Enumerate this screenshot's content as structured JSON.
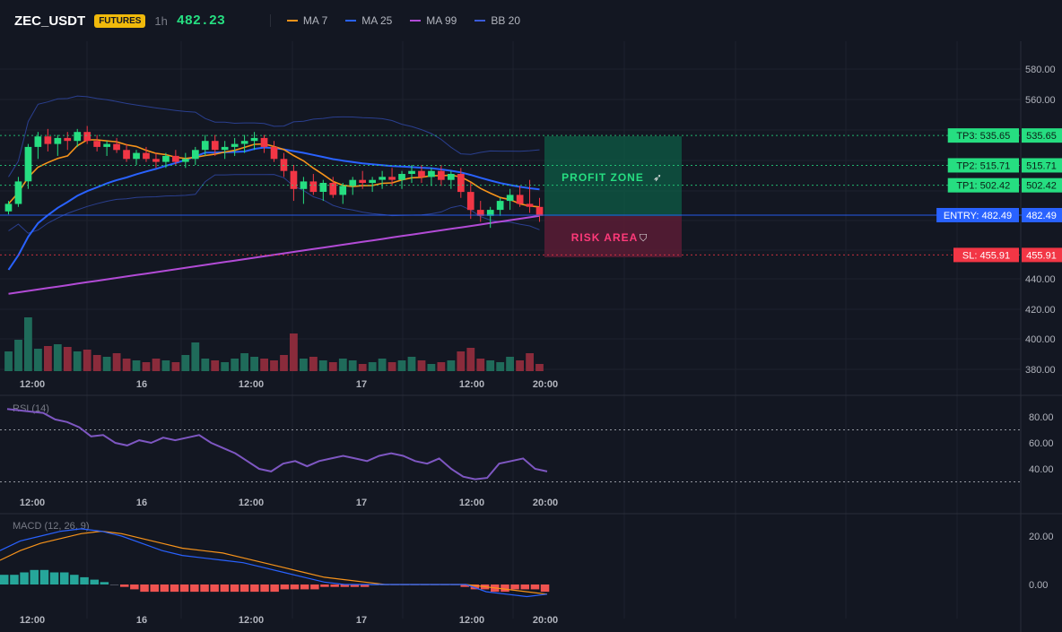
{
  "header": {
    "symbol": "ZEC_USDT",
    "badge": "FUTURES",
    "timeframe": "1h",
    "price": "482.23",
    "indicators": [
      {
        "label": "MA 7",
        "color": "#f7931a"
      },
      {
        "label": "MA 25",
        "color": "#2962ff"
      },
      {
        "label": "MA 99",
        "color": "#b24bd6"
      },
      {
        "label": "BB 20",
        "color": "#3a5bd9"
      }
    ]
  },
  "zones": {
    "profit": "PROFIT ZONE",
    "risk": "RISK AREA"
  },
  "levels": [
    {
      "label": "TP3: 535.65",
      "value": 535.65,
      "axis": "535.65",
      "color": "#26de81"
    },
    {
      "label": "TP2: 515.71",
      "value": 515.71,
      "axis": "515.71",
      "color": "#26de81"
    },
    {
      "label": "TP1: 502.42",
      "value": 502.42,
      "axis": "502.42",
      "color": "#26de81"
    },
    {
      "label": "ENTRY: 482.49",
      "value": 482.49,
      "axis": "482.49",
      "color": "#2962ff"
    },
    {
      "label": "SL: 455.91",
      "value": 455.91,
      "axis": "455.91",
      "color": "#f23645"
    }
  ],
  "rsi_title": "RSI (14)",
  "macd_title": "MACD (12, 26, 9)",
  "chart_data": [
    {
      "type": "candlestick",
      "title": "",
      "yticks": [
        "580.00",
        "560.00",
        "440.00",
        "420.00",
        "400.00",
        "380.00"
      ],
      "xticks": [
        "12:00",
        "16",
        "12:00",
        "17",
        "12:00",
        "20:00"
      ],
      "ylim": [
        380,
        590
      ],
      "candles": [
        [
          485,
          492,
          483,
          490
        ],
        [
          490,
          508,
          488,
          505
        ],
        [
          505,
          530,
          500,
          528
        ],
        [
          528,
          538,
          520,
          535
        ],
        [
          535,
          540,
          525,
          530
        ],
        [
          530,
          536,
          522,
          534
        ],
        [
          534,
          538,
          526,
          532
        ],
        [
          532,
          540,
          528,
          538
        ],
        [
          538,
          542,
          530,
          532
        ],
        [
          532,
          536,
          525,
          528
        ],
        [
          528,
          532,
          522,
          530
        ],
        [
          530,
          534,
          524,
          526
        ],
        [
          526,
          530,
          518,
          520
        ],
        [
          520,
          526,
          516,
          524
        ],
        [
          524,
          528,
          518,
          520
        ],
        [
          520,
          524,
          514,
          518
        ],
        [
          518,
          524,
          514,
          522
        ],
        [
          522,
          526,
          516,
          518
        ],
        [
          518,
          524,
          514,
          520
        ],
        [
          520,
          528,
          516,
          526
        ],
        [
          526,
          536,
          522,
          532
        ],
        [
          532,
          536,
          522,
          526
        ],
        [
          526,
          532,
          520,
          528
        ],
        [
          528,
          534,
          522,
          530
        ],
        [
          530,
          536,
          524,
          532
        ],
        [
          532,
          538,
          526,
          534
        ],
        [
          534,
          536,
          524,
          528
        ],
        [
          528,
          532,
          518,
          520
        ],
        [
          520,
          524,
          508,
          512
        ],
        [
          512,
          516,
          492,
          500
        ],
        [
          500,
          508,
          490,
          505
        ],
        [
          505,
          510,
          496,
          498
        ],
        [
          498,
          506,
          492,
          504
        ],
        [
          504,
          508,
          494,
          496
        ],
        [
          496,
          504,
          490,
          502
        ],
        [
          502,
          508,
          496,
          506
        ],
        [
          506,
          512,
          500,
          504
        ],
        [
          504,
          508,
          498,
          506
        ],
        [
          506,
          512,
          500,
          508
        ],
        [
          508,
          514,
          502,
          506
        ],
        [
          506,
          512,
          500,
          510
        ],
        [
          510,
          516,
          504,
          512
        ],
        [
          512,
          516,
          504,
          508
        ],
        [
          508,
          514,
          502,
          512
        ],
        [
          512,
          516,
          502,
          506
        ],
        [
          506,
          512,
          500,
          510
        ],
        [
          510,
          514,
          494,
          498
        ],
        [
          498,
          504,
          480,
          486
        ],
        [
          486,
          492,
          478,
          482
        ],
        [
          482,
          488,
          474,
          486
        ],
        [
          486,
          494,
          482,
          492
        ],
        [
          492,
          500,
          486,
          496
        ],
        [
          496,
          502,
          488,
          490
        ],
        [
          490,
          506,
          484,
          488
        ],
        [
          488,
          494,
          478,
          482
        ]
      ],
      "volume": [
        22,
        35,
        60,
        25,
        28,
        30,
        27,
        22,
        24,
        18,
        16,
        20,
        14,
        12,
        10,
        14,
        12,
        10,
        18,
        32,
        14,
        12,
        10,
        14,
        20,
        16,
        14,
        12,
        18,
        42,
        14,
        16,
        12,
        10,
        14,
        12,
        8,
        10,
        14,
        10,
        12,
        16,
        12,
        8,
        10,
        12,
        22,
        26,
        14,
        12,
        10,
        16,
        12,
        20,
        8
      ]
    },
    {
      "type": "line",
      "title": "RSI (14)",
      "yticks": [
        "80.00",
        "60.00",
        "40.00"
      ],
      "ylim": [
        25,
        90
      ],
      "values": [
        86,
        85,
        84,
        83,
        78,
        76,
        72,
        65,
        66,
        60,
        58,
        62,
        60,
        64,
        62,
        64,
        66,
        60,
        56,
        52,
        46,
        40,
        38,
        44,
        46,
        42,
        46,
        48,
        50,
        48,
        46,
        50,
        52,
        50,
        46,
        44,
        48,
        40,
        34,
        32,
        33,
        44,
        46,
        48,
        40,
        38
      ]
    },
    {
      "type": "bar+line",
      "title": "MACD (12, 26, 9)",
      "yticks": [
        "20.00",
        "0.00"
      ],
      "ylim": [
        -8,
        28
      ],
      "hist": [
        4,
        4,
        5,
        6,
        6,
        5,
        5,
        4,
        3,
        2,
        1,
        0,
        -1,
        -2,
        -3,
        -3,
        -3,
        -3,
        -3,
        -3,
        -3,
        -3,
        -3,
        -3,
        -3,
        -3,
        -3,
        -3,
        -2,
        -2,
        -2,
        -2,
        -1,
        -1,
        -1,
        -1,
        -1,
        0,
        0,
        0,
        0,
        0,
        0,
        0,
        0,
        0,
        -1,
        -2,
        -2,
        -3,
        -3,
        -2,
        -2,
        -2,
        -3
      ],
      "macd": [
        14,
        18,
        20,
        22,
        23,
        22,
        20,
        17,
        14,
        12,
        11,
        10,
        9,
        7,
        5,
        3,
        1,
        0,
        0,
        0,
        0,
        0,
        0,
        0,
        -3,
        -4,
        -5,
        -4
      ],
      "signal": [
        10,
        14,
        17,
        19,
        21,
        22,
        21,
        19,
        17,
        15,
        14,
        13,
        11,
        9,
        7,
        5,
        3,
        2,
        1,
        0,
        0,
        0,
        0,
        0,
        -1,
        -2,
        -3,
        -4
      ]
    }
  ]
}
